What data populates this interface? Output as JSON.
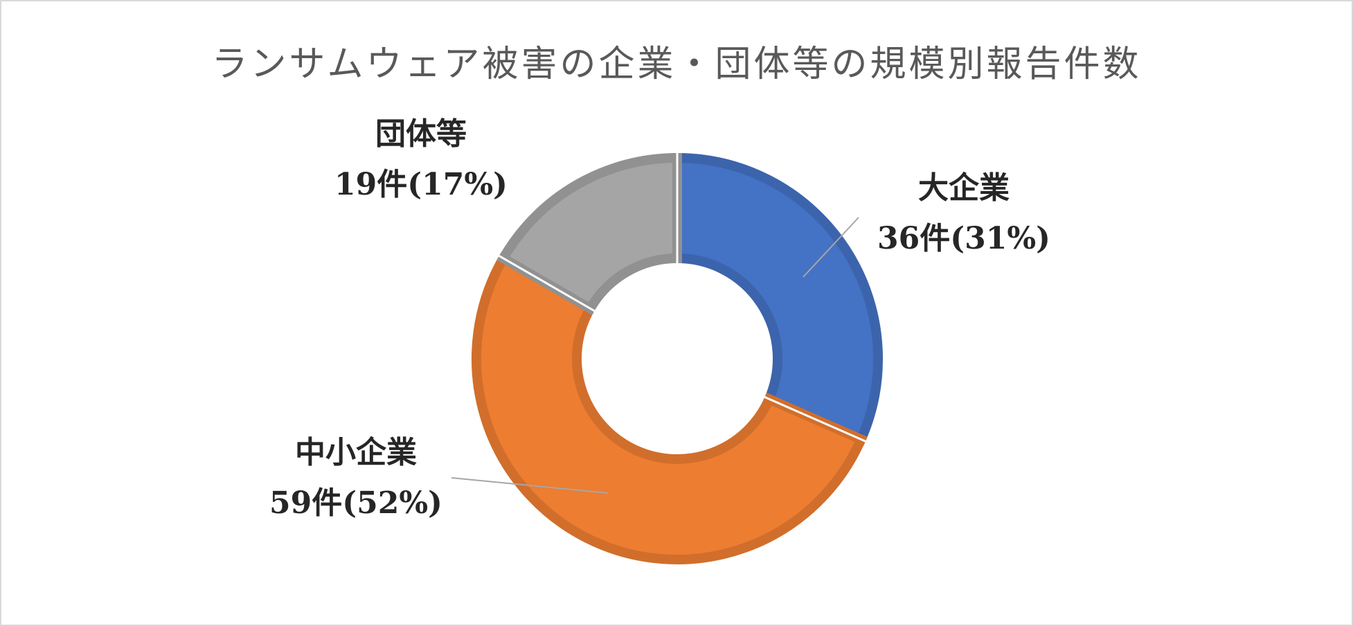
{
  "chart_data": {
    "type": "pie",
    "title": "ランサムウェア被害の企業・団体等の規模別報告件数",
    "categories": [
      "大企業",
      "中小企業",
      "団体等"
    ],
    "values": [
      36,
      59,
      19
    ],
    "percent_labels": [
      "36件(31%)",
      "59件(52%)",
      "19件(17%)"
    ],
    "colors": [
      "#4472c4",
      "#ed7d31",
      "#a5a5a5"
    ],
    "donut": true,
    "legend": "none"
  }
}
